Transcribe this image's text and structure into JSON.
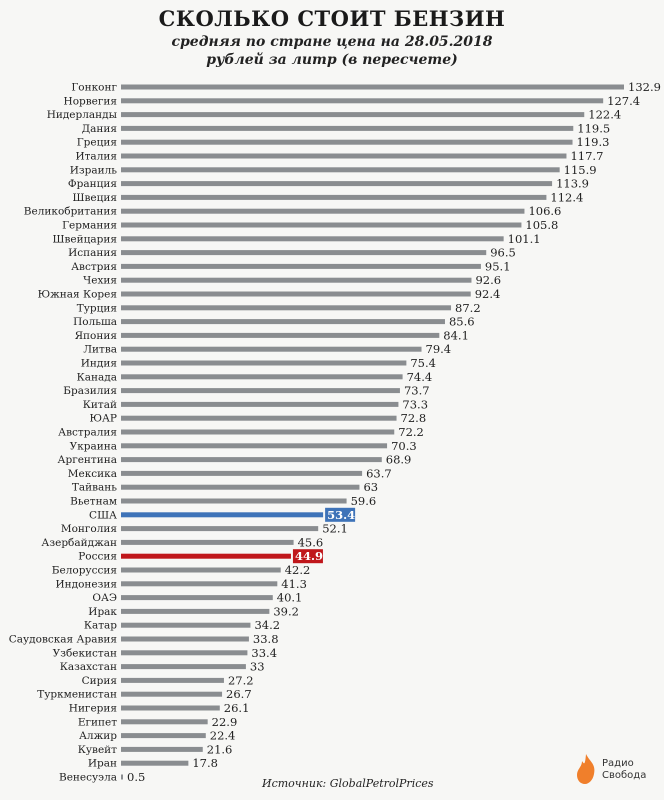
{
  "header": {
    "title": "СКОЛЬКО СТОИТ БЕНЗИН",
    "subtitle_line1": "средняя по стране цена на 28.05.2018",
    "subtitle_line2": "рублей за литр (в пересчете)"
  },
  "footer": {
    "source": "Источник: GlobalPetrolPrices",
    "logo_line1": "Радио",
    "logo_line2": "Свобода",
    "logo_icon": "radio-svoboda-flame-icon"
  },
  "colors": {
    "bar": "#8a8d90",
    "usa_highlight": "#3e73b8",
    "russia_highlight": "#c0171b",
    "logo_accent": "#f07f2b"
  },
  "chart_data": {
    "type": "bar",
    "orientation": "horizontal",
    "title": "СКОЛЬКО СТОИТ БЕНЗИН",
    "subtitle": "средняя по стране цена на 28.05.2018 рублей за литр (в пересчете)",
    "xlabel": "",
    "ylabel": "",
    "xlim": [
      0,
      132.9
    ],
    "grid": false,
    "highlighted": {
      "США": "usa_highlight",
      "Россия": "russia_highlight"
    },
    "categories": [
      "Гонконг",
      "Норвегия",
      "Нидерланды",
      "Дания",
      "Греция",
      "Италия",
      "Израиль",
      "Франция",
      "Швеция",
      "Великобритания",
      "Германия",
      "Швейцария",
      "Испания",
      "Австрия",
      "Чехия",
      "Южная Корея",
      "Турция",
      "Польша",
      "Япония",
      "Литва",
      "Индия",
      "Канада",
      "Бразилия",
      "Китай",
      "ЮАР",
      "Австралия",
      "Украина",
      "Аргентина",
      "Мексика",
      "Тайвань",
      "Вьетнам",
      "США",
      "Монголия",
      "Азербайджан",
      "Россия",
      "Белоруссия",
      "Индонезия",
      "ОАЭ",
      "Ирак",
      "Катар",
      "Саудовская Аравия",
      "Узбекистан",
      "Казахстан",
      "Сирия",
      "Туркменистан",
      "Нигерия",
      "Египет",
      "Алжир",
      "Кувейт",
      "Иран",
      "Венесуэла"
    ],
    "values": [
      132.9,
      127.4,
      122.4,
      119.5,
      119.3,
      117.7,
      115.9,
      113.9,
      112.4,
      106.6,
      105.8,
      101.1,
      96.5,
      95.1,
      92.6,
      92.4,
      87.2,
      85.6,
      84.1,
      79.4,
      75.4,
      74.4,
      73.7,
      73.3,
      72.8,
      72.2,
      70.3,
      68.9,
      63.7,
      63,
      59.6,
      53.4,
      52.1,
      45.6,
      44.9,
      42.2,
      41.3,
      40.1,
      39.2,
      34.2,
      33.8,
      33.4,
      33,
      27.2,
      26.7,
      26.1,
      22.9,
      22.4,
      21.6,
      17.8,
      0.5
    ],
    "value_labels": [
      "132.9",
      "127.4",
      "122.4",
      "119.5",
      "119.3",
      "117.7",
      "115.9",
      "113.9",
      "112.4",
      "106.6",
      "105.8",
      "101.1",
      "96.5",
      "95.1",
      "92.6",
      "92.4",
      "87.2",
      "85.6",
      "84.1",
      "79.4",
      "75.4",
      "74.4",
      "73.7",
      "73.3",
      "72.8",
      "72.2",
      "70.3",
      "68.9",
      "63.7",
      "63",
      "59.6",
      "53.4",
      "52.1",
      "45.6",
      "44.9",
      "42.2",
      "41.3",
      "40.1",
      "39.2",
      "34.2",
      "33.8",
      "33.4",
      "33",
      "27.2",
      "26.7",
      "26.1",
      "22.9",
      "22.4",
      "21.6",
      "17.8",
      "0.5"
    ]
  }
}
